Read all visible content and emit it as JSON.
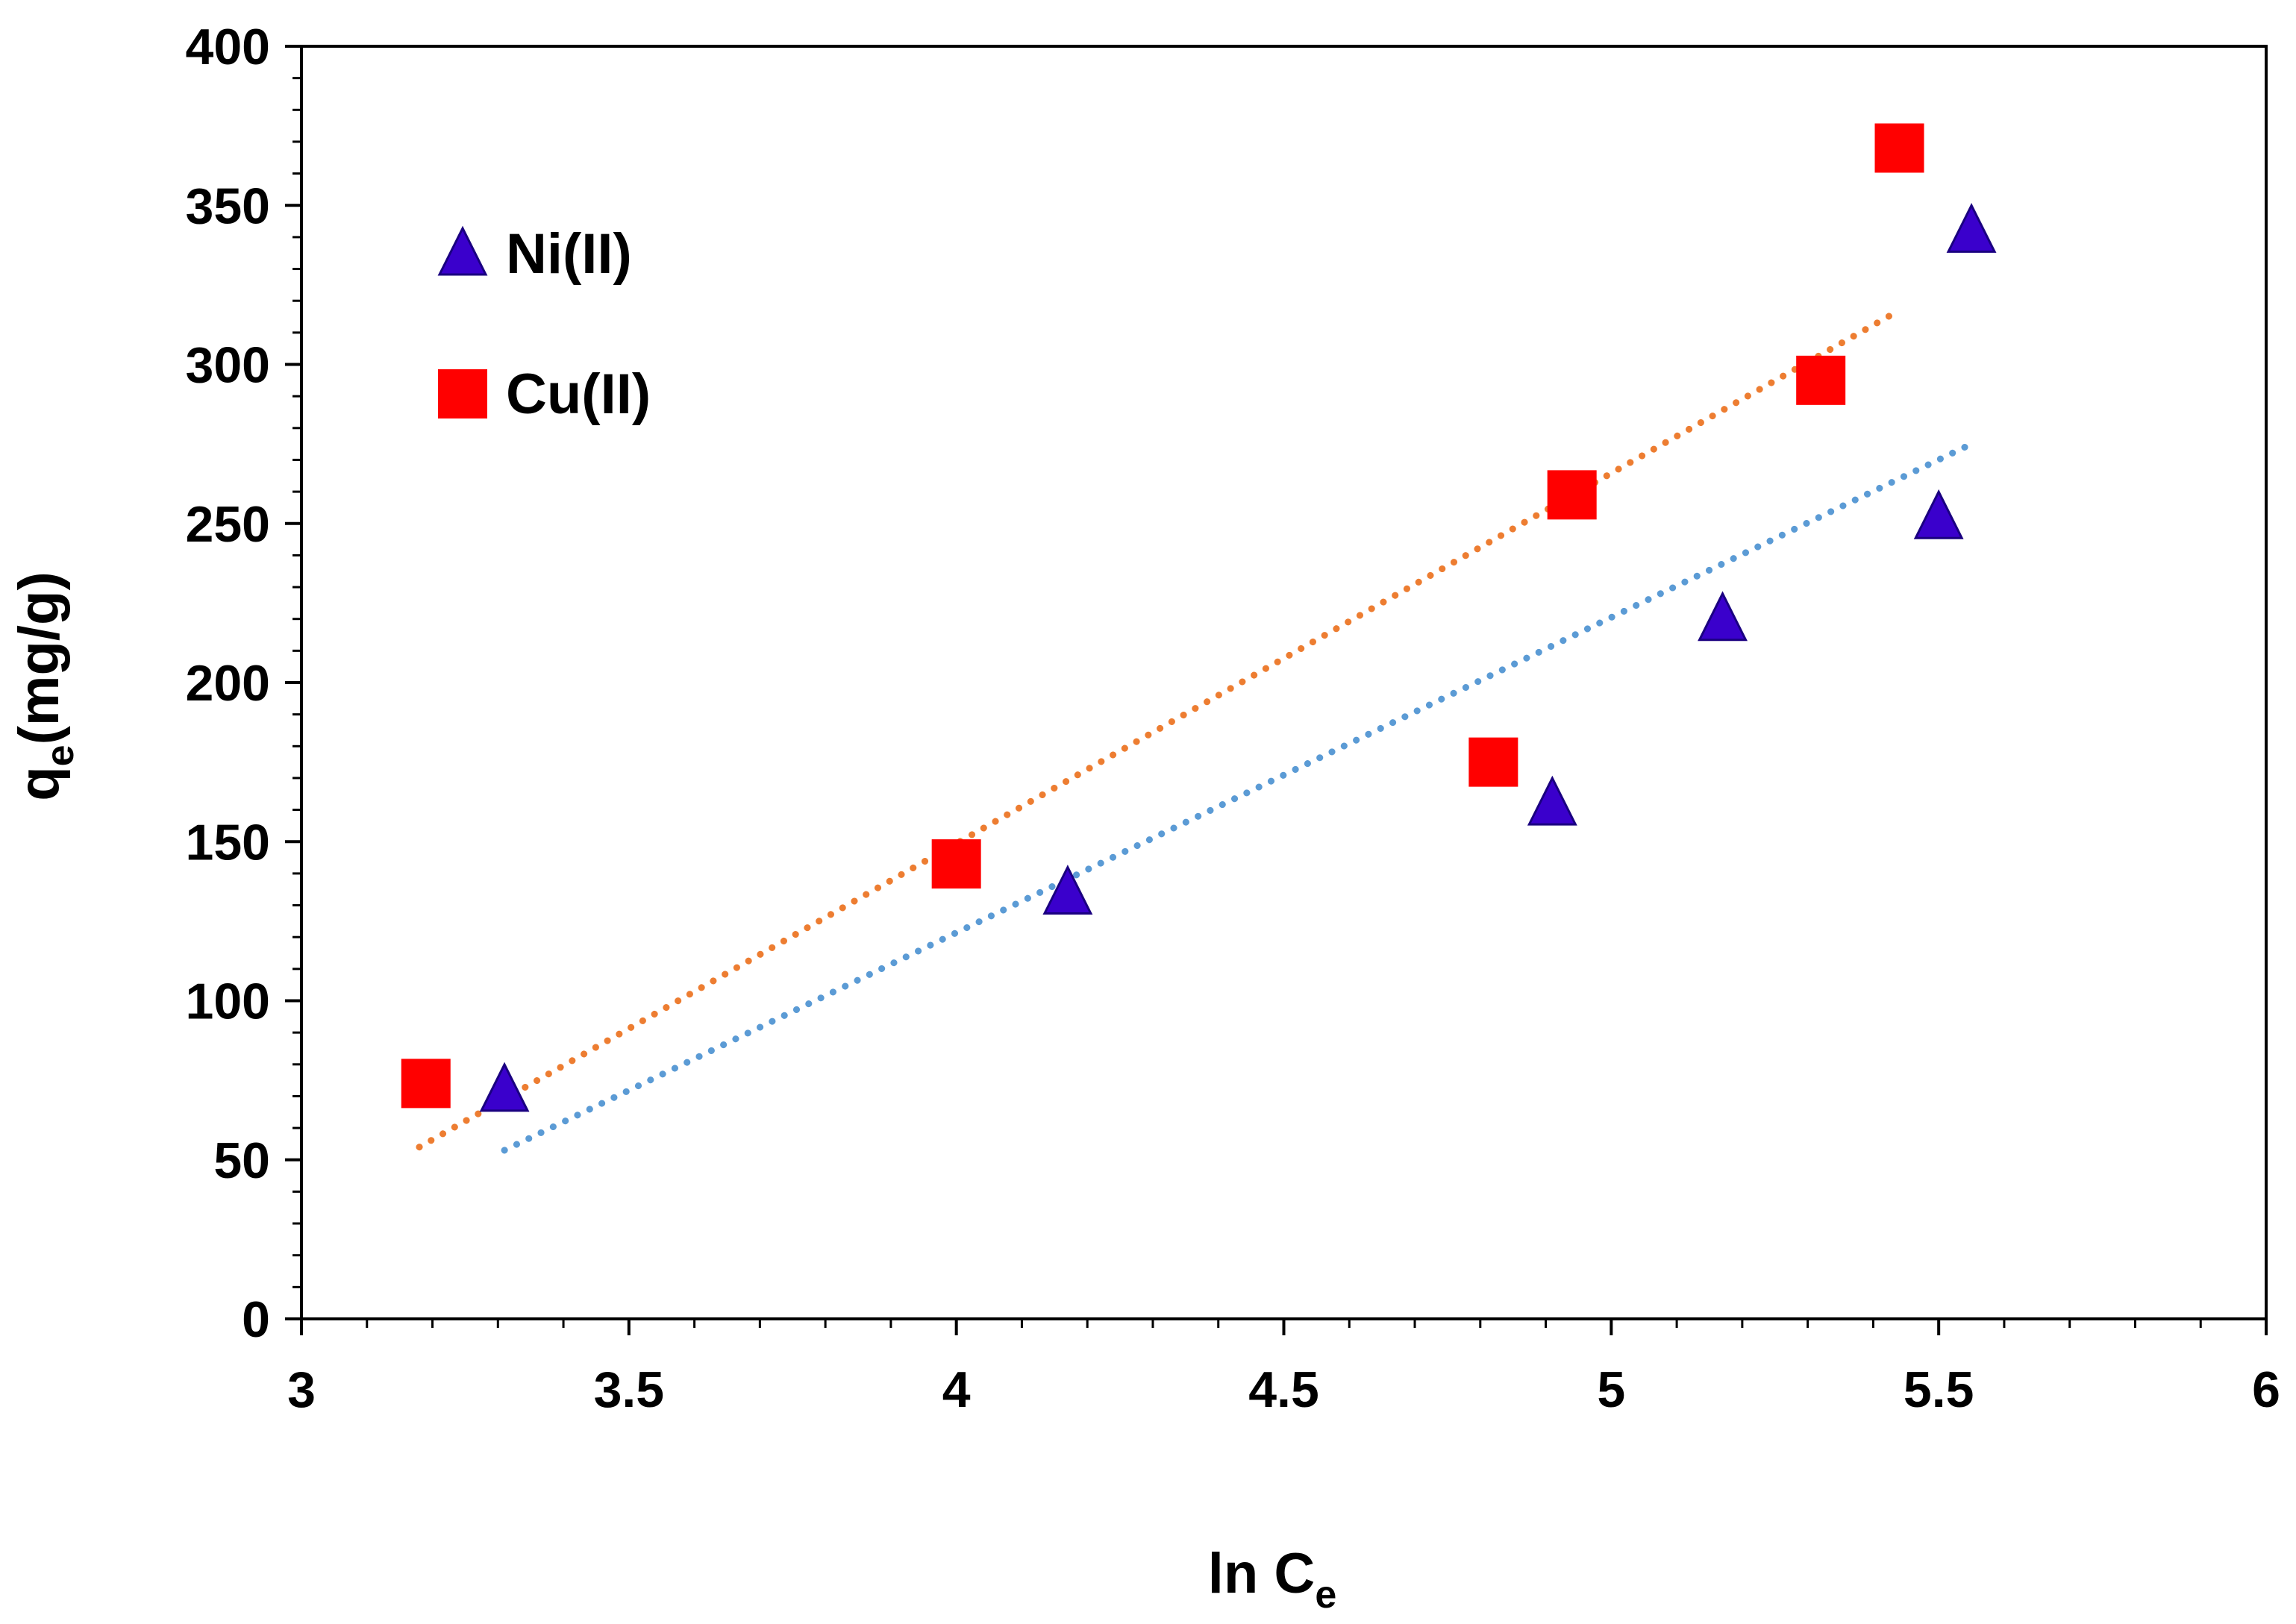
{
  "chart_data": {
    "type": "scatter",
    "title": "",
    "xlabel": {
      "main": "ln C",
      "sub": "e"
    },
    "ylabel": {
      "main": "q",
      "sub": "e",
      "rest": "(mg/g)"
    },
    "xlim": [
      3,
      6
    ],
    "ylim": [
      0,
      400
    ],
    "x_ticks": [
      3,
      3.5,
      4,
      4.5,
      5,
      5.5,
      6
    ],
    "x_tick_labels": [
      "3",
      "3.5",
      "4",
      "4.5",
      "5",
      "5.5",
      "6"
    ],
    "y_ticks": [
      0,
      50,
      100,
      150,
      200,
      250,
      300,
      350,
      400
    ],
    "y_tick_labels": [
      "0",
      "50",
      "100",
      "150",
      "200",
      "250",
      "300",
      "350",
      "400"
    ],
    "grid": false,
    "legend_position": "top-left",
    "series": [
      {
        "name": "Ni(II)",
        "marker": "triangle",
        "color": "#3A00CC",
        "points": [
          {
            "x": 3.31,
            "y": 72
          },
          {
            "x": 4.17,
            "y": 134
          },
          {
            "x": 4.91,
            "y": 162
          },
          {
            "x": 5.17,
            "y": 220
          },
          {
            "x": 5.5,
            "y": 252
          },
          {
            "x": 5.55,
            "y": 342
          }
        ],
        "trendline": {
          "color": "#5B9BD5",
          "x": [
            3.31,
            5.55
          ],
          "y": [
            53,
            275
          ]
        }
      },
      {
        "name": "Cu(II)",
        "marker": "square",
        "color": "#FF0000",
        "points": [
          {
            "x": 3.19,
            "y": 74
          },
          {
            "x": 4.0,
            "y": 143
          },
          {
            "x": 4.82,
            "y": 175
          },
          {
            "x": 4.94,
            "y": 259
          },
          {
            "x": 5.32,
            "y": 295
          },
          {
            "x": 5.44,
            "y": 368
          }
        ],
        "trendline": {
          "color": "#ED7D31",
          "x": [
            3.18,
            5.44
          ],
          "y": [
            54,
            317
          ]
        }
      }
    ]
  }
}
